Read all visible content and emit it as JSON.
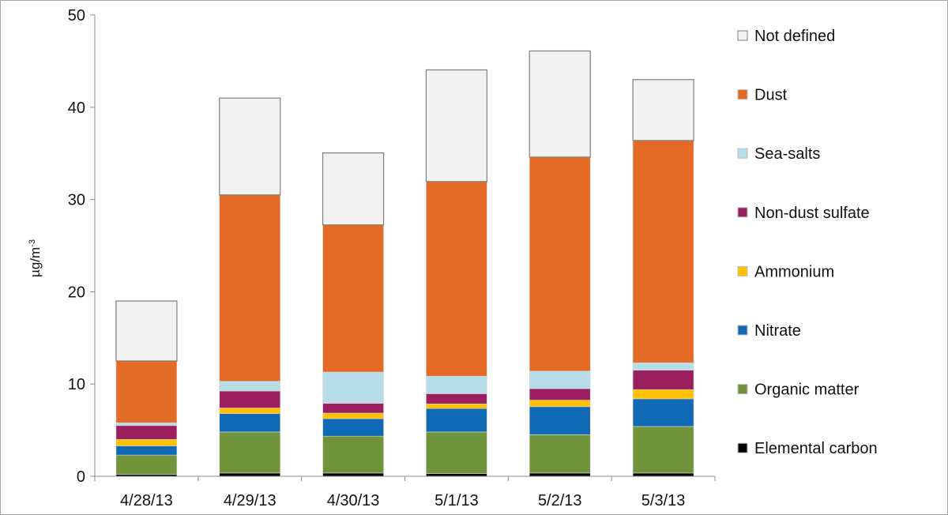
{
  "chart_data": {
    "type": "bar",
    "stacked": true,
    "categories": [
      "4/28/13",
      "4/29/13",
      "4/30/13",
      "5/1/13",
      "5/2/13",
      "5/3/13"
    ],
    "ylabel": "µg/m-3",
    "ylabel_base": "µg/m",
    "ylabel_exp": "-3",
    "ylim": [
      0,
      50
    ],
    "yticks": [
      "0",
      "10",
      "20",
      "30",
      "40",
      "50"
    ],
    "grid": false,
    "legend_position": "right",
    "series": [
      {
        "name": "Elemental carbon",
        "color": "#000000",
        "values": [
          0.2,
          0.35,
          0.35,
          0.3,
          0.35,
          0.35
        ]
      },
      {
        "name": "Organic matter",
        "color": "#70943a",
        "values": [
          2.1,
          4.45,
          4.0,
          4.5,
          4.15,
          5.05
        ]
      },
      {
        "name": "Nitrate",
        "color": "#0f69b4",
        "values": [
          1.0,
          2.0,
          1.9,
          2.55,
          3.05,
          3.0
        ]
      },
      {
        "name": "Ammonium",
        "color": "#ffc000",
        "values": [
          0.7,
          0.6,
          0.6,
          0.5,
          0.7,
          1.0
        ]
      },
      {
        "name": "Non-dust sulfate",
        "color": "#9b1f5f",
        "values": [
          1.5,
          1.85,
          1.05,
          1.1,
          1.25,
          2.1
        ]
      },
      {
        "name": "Sea-salts",
        "color": "#b7dde8",
        "values": [
          0.3,
          1.05,
          3.4,
          1.9,
          1.9,
          0.8
        ]
      },
      {
        "name": "Dust",
        "color": "#e46b25",
        "values": [
          6.7,
          20.2,
          15.95,
          21.1,
          23.2,
          24.1
        ]
      },
      {
        "name": "Not defined",
        "color": "#f2f2f2",
        "values": [
          6.5,
          10.5,
          7.8,
          12.1,
          11.5,
          6.6
        ]
      }
    ]
  }
}
